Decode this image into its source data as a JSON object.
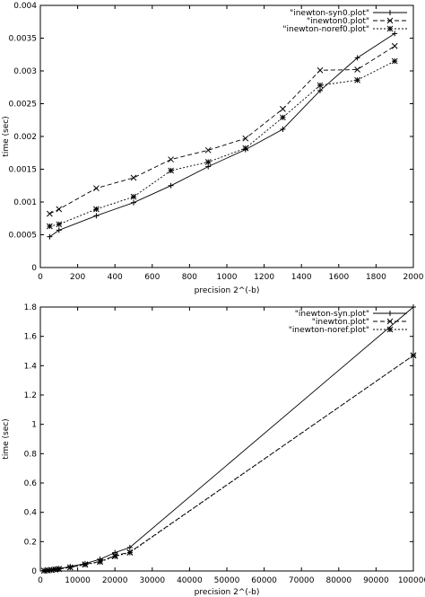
{
  "chart_data": [
    {
      "type": "line",
      "xlabel": "precision 2^(-b)",
      "ylabel": "time (sec)",
      "xlim": [
        0,
        2000
      ],
      "ylim": [
        0,
        0.004
      ],
      "xticks": [
        "0",
        "200",
        "400",
        "600",
        "800",
        "1000",
        "1200",
        "1400",
        "1600",
        "1800",
        "2000"
      ],
      "yticks": [
        "0",
        "0.0005",
        "0.001",
        "0.0015",
        "0.002",
        "0.0025",
        "0.003",
        "0.0035",
        "0.004"
      ],
      "legend_position": "top-right",
      "grid": false,
      "series": [
        {
          "name": "\"inewton-syn0.plot\"",
          "marker": "+",
          "dash": "solid",
          "points": [
            [
              50,
              0.00047
            ],
            [
              100,
              0.00057
            ],
            [
              300,
              0.00079
            ],
            [
              500,
              0.00099
            ],
            [
              700,
              0.00125
            ],
            [
              900,
              0.00154
            ],
            [
              1100,
              0.0018
            ],
            [
              1300,
              0.00211
            ],
            [
              1500,
              0.0027
            ],
            [
              1700,
              0.0032
            ],
            [
              1900,
              0.00357
            ]
          ]
        },
        {
          "name": "\"inewton0.plot\"",
          "marker": "x",
          "dash": "long",
          "points": [
            [
              50,
              0.00082
            ],
            [
              100,
              0.00089
            ],
            [
              300,
              0.00121
            ],
            [
              500,
              0.00137
            ],
            [
              700,
              0.00165
            ],
            [
              900,
              0.00179
            ],
            [
              1100,
              0.00197
            ],
            [
              1300,
              0.00242
            ],
            [
              1500,
              0.00301
            ],
            [
              1700,
              0.00302
            ],
            [
              1900,
              0.00338
            ]
          ]
        },
        {
          "name": "\"inewton-noref0.plot\"",
          "marker": "*",
          "dash": "short",
          "points": [
            [
              50,
              0.00063
            ],
            [
              100,
              0.00066
            ],
            [
              300,
              0.00089
            ],
            [
              500,
              0.00108
            ],
            [
              700,
              0.00148
            ],
            [
              900,
              0.00161
            ],
            [
              1100,
              0.00182
            ],
            [
              1300,
              0.00229
            ],
            [
              1500,
              0.00278
            ],
            [
              1700,
              0.00286
            ],
            [
              1900,
              0.00315
            ]
          ]
        }
      ]
    },
    {
      "type": "line",
      "xlabel": "precision 2^(-b)",
      "ylabel": "time (sec)",
      "xlim": [
        0,
        100000
      ],
      "ylim": [
        0,
        1.8
      ],
      "xticks": [
        "0",
        "10000",
        "20000",
        "30000",
        "40000",
        "50000",
        "60000",
        "70000",
        "80000",
        "90000",
        "100000"
      ],
      "yticks": [
        "0",
        "0.2",
        "0.4",
        "0.6",
        "0.8",
        "1",
        "1.2",
        "1.4",
        "1.6",
        "1.8"
      ],
      "legend_position": "top-right",
      "grid": false,
      "series": [
        {
          "name": "\"inewton-syn.plot\"",
          "marker": "+",
          "dash": "solid",
          "points": [
            [
              1000,
              0.002
            ],
            [
              2000,
              0.005
            ],
            [
              3000,
              0.008
            ],
            [
              4000,
              0.012
            ],
            [
              5000,
              0.016
            ],
            [
              8000,
              0.03
            ],
            [
              12000,
              0.05
            ],
            [
              16000,
              0.08
            ],
            [
              20000,
              0.125
            ],
            [
              24000,
              0.16
            ],
            [
              100000,
              1.8
            ]
          ]
        },
        {
          "name": "\"inewton.plot\"",
          "marker": "x",
          "dash": "long",
          "points": [
            [
              1000,
              0.002
            ],
            [
              2000,
              0.004
            ],
            [
              3000,
              0.007
            ],
            [
              4000,
              0.01
            ],
            [
              5000,
              0.014
            ],
            [
              8000,
              0.025
            ],
            [
              12000,
              0.045
            ],
            [
              16000,
              0.065
            ],
            [
              20000,
              0.105
            ],
            [
              24000,
              0.128
            ],
            [
              100000,
              1.47
            ]
          ]
        },
        {
          "name": "\"inewton-noref.plot\"",
          "marker": "*",
          "dash": "short",
          "points": [
            [
              1000,
              0.002
            ],
            [
              2000,
              0.004
            ],
            [
              3000,
              0.007
            ],
            [
              4000,
              0.01
            ],
            [
              5000,
              0.013
            ],
            [
              8000,
              0.024
            ],
            [
              12000,
              0.043
            ],
            [
              16000,
              0.062
            ],
            [
              20000,
              0.1
            ],
            [
              24000,
              0.125
            ],
            [
              100000,
              1.47
            ]
          ]
        }
      ]
    }
  ]
}
